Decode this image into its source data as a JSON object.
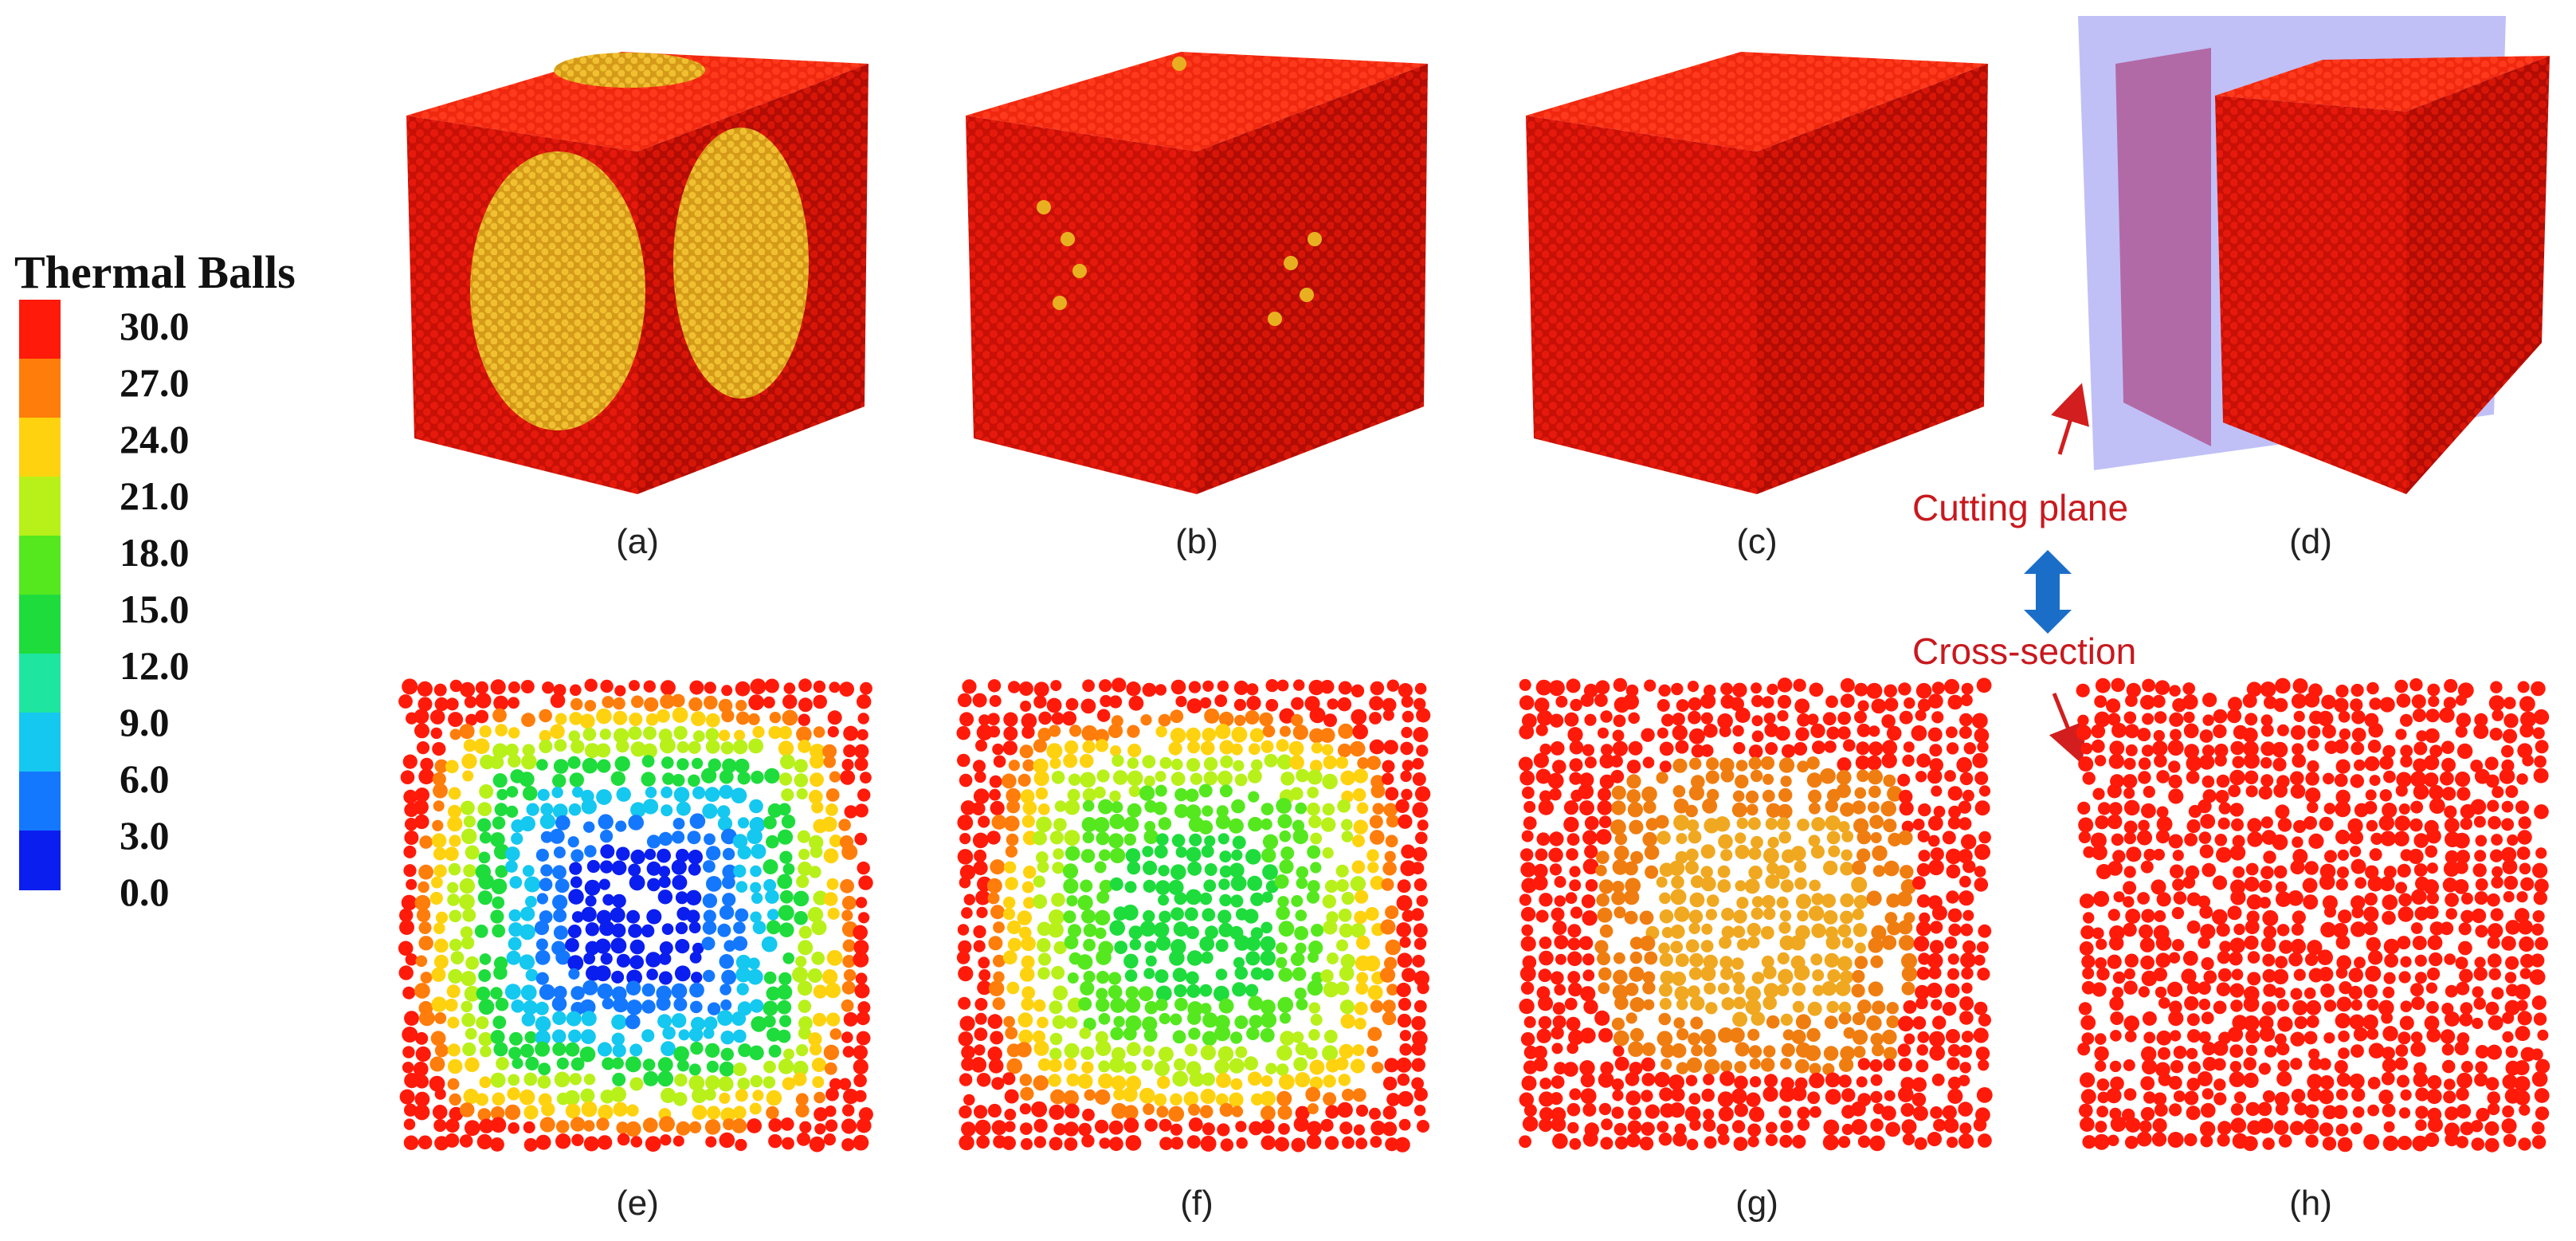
{
  "legend": {
    "title": "Thermal Balls",
    "ticks": [
      "30.0",
      "27.0",
      "24.0",
      "21.0",
      "18.0",
      "15.0",
      "12.0",
      "9.0",
      "6.0",
      "3.0",
      "0.0"
    ],
    "colors": [
      "#ff1a0a",
      "#ff7d0a",
      "#ffd20f",
      "#b8f01a",
      "#55e81e",
      "#1edc3c",
      "#1ee6a0",
      "#14c8f0",
      "#1478ff",
      "#0a1ef0"
    ]
  },
  "panels": {
    "a": "(a)",
    "b": "(b)",
    "c": "(c)",
    "d": "(d)",
    "e": "(e)",
    "f": "(f)",
    "g": "(g)",
    "h": "(h)"
  },
  "annotations": {
    "cutting_plane": "Cutting plane",
    "cross_section": "Cross-section"
  },
  "colors": {
    "cube_red": "#e01408",
    "cube_red_dark": "#b20c04",
    "cube_red_top": "#f0280f",
    "hot_patch": "#e8b020",
    "plane": "#8c8cf0",
    "arrow_red": "#d21e1e",
    "arrow_blue": "#1a6ec8"
  }
}
